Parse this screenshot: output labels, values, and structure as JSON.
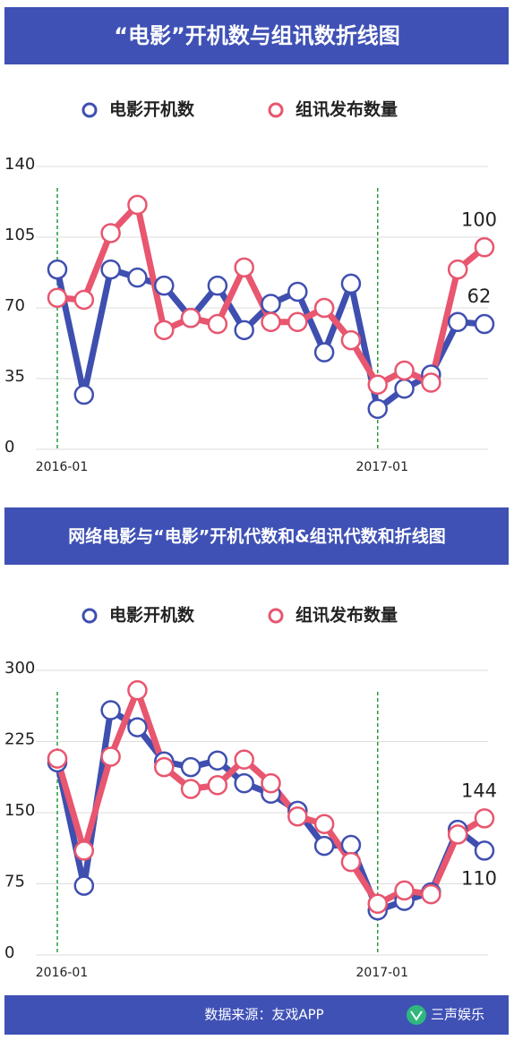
{
  "chart_data": [
    {
      "type": "line",
      "title": "“电影”开机数与组讯数折线图",
      "categories": [
        "2016-01",
        null,
        null,
        null,
        null,
        null,
        null,
        null,
        null,
        null,
        null,
        null,
        "2017-01",
        null,
        null,
        null,
        null
      ],
      "series": [
        {
          "name": "电影开机数",
          "color": "#3f4fb0",
          "values": [
            89,
            27,
            89,
            85,
            81,
            65,
            81,
            59,
            72,
            78,
            48,
            82,
            20,
            30,
            37,
            63,
            62
          ]
        },
        {
          "name": "组讯发布数量",
          "color": "#e8566f",
          "values": [
            75,
            74,
            107,
            121,
            59,
            65,
            62,
            90,
            63,
            63,
            70,
            54,
            32,
            39,
            33,
            89,
            100
          ]
        }
      ],
      "ylim": [
        0,
        140
      ],
      "yticks": [
        0,
        35,
        70,
        105,
        140
      ],
      "grid": true,
      "legend": "top",
      "label_last_point": true
    },
    {
      "type": "line",
      "title": "网络电影与“电影”开机代数和&组讯代数和折线图",
      "categories": [
        "2016-01",
        null,
        null,
        null,
        null,
        null,
        null,
        null,
        null,
        null,
        null,
        null,
        "2017-01",
        null,
        null,
        null,
        null
      ],
      "series": [
        {
          "name": "电影开机数",
          "color": "#3f4fb0",
          "values": [
            203,
            73,
            258,
            240,
            204,
            198,
            205,
            181,
            170,
            152,
            115,
            116,
            47,
            57,
            66,
            132,
            110
          ]
        },
        {
          "name": "组讯发布数量",
          "color": "#e8566f",
          "values": [
            207,
            110,
            209,
            279,
            198,
            175,
            179,
            206,
            181,
            146,
            138,
            98,
            54,
            68,
            64,
            127,
            144
          ]
        }
      ],
      "ylim": [
        0,
        300
      ],
      "yticks": [
        0,
        75,
        150,
        225,
        300
      ],
      "grid": true,
      "legend": "top",
      "label_last_point": true
    }
  ],
  "footer": {
    "source": "数据来源：友戏APP",
    "brand": "三声娱乐"
  }
}
